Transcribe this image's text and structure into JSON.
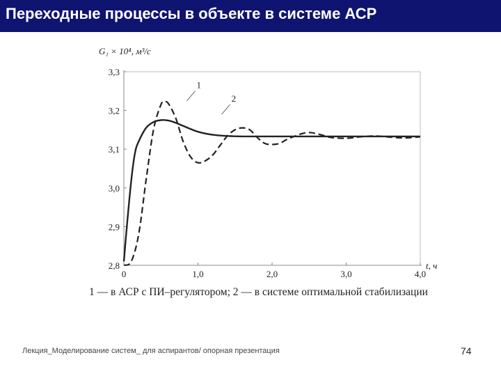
{
  "slide": {
    "title": "Переходные процессы в объекте в системе АСР",
    "caption": "1 — в АСР с ПИ–регулятором; 2 — в системе оптимальной стабилизации",
    "footer": "Лекция_Моделирование систем_ для аспирантов/ опорная презентация",
    "page_number": "74",
    "colors": {
      "title_bar": "#0f1470",
      "title_text": "#ffffff",
      "curves": "#222222"
    }
  },
  "chart_data": {
    "type": "line",
    "ylabel": "G₁ × 10⁴, м³/с",
    "xlabel": "t, ч",
    "xlim": [
      0,
      4.0
    ],
    "ylim": [
      2.8,
      3.3
    ],
    "x_ticks": [
      "0",
      "1,0",
      "2,0",
      "3,0",
      "4,0"
    ],
    "y_ticks": [
      "2,8",
      "2,9",
      "3,0",
      "3,1",
      "3,2",
      "3,3"
    ],
    "grid": false,
    "series": [
      {
        "name": "1",
        "style": "dashed",
        "x": [
          0,
          0.1,
          0.2,
          0.3,
          0.4,
          0.5,
          0.55,
          0.6,
          0.7,
          0.8,
          0.9,
          1.0,
          1.1,
          1.2,
          1.3,
          1.4,
          1.5,
          1.6,
          1.7,
          1.8,
          1.9,
          2.0,
          2.1,
          2.2,
          2.3,
          2.4,
          2.5,
          2.6,
          2.7,
          2.8,
          3.0,
          3.2,
          3.4,
          3.6,
          3.8,
          4.0
        ],
        "y": [
          2.8,
          2.81,
          2.88,
          3.02,
          3.15,
          3.215,
          3.222,
          3.218,
          3.18,
          3.12,
          3.08,
          3.065,
          3.07,
          3.085,
          3.11,
          3.135,
          3.15,
          3.155,
          3.15,
          3.13,
          3.115,
          3.112,
          3.115,
          3.125,
          3.133,
          3.14,
          3.143,
          3.14,
          3.135,
          3.13,
          3.128,
          3.132,
          3.134,
          3.131,
          3.129,
          3.132
        ]
      },
      {
        "name": "2",
        "style": "solid",
        "x": [
          0,
          0.05,
          0.1,
          0.15,
          0.2,
          0.3,
          0.4,
          0.5,
          0.6,
          0.7,
          0.8,
          1.0,
          1.2,
          1.4,
          1.6,
          1.8,
          2.0,
          2.5,
          3.0,
          3.5,
          4.0
        ],
        "y": [
          2.81,
          2.92,
          3.02,
          3.09,
          3.12,
          3.155,
          3.17,
          3.175,
          3.174,
          3.168,
          3.16,
          3.145,
          3.137,
          3.134,
          3.133,
          3.133,
          3.133,
          3.133,
          3.133,
          3.133,
          3.133
        ]
      }
    ],
    "annotations": [
      {
        "label": "1",
        "x": 0.85,
        "y": 3.225
      },
      {
        "label": "2",
        "x": 1.32,
        "y": 3.19
      }
    ]
  }
}
